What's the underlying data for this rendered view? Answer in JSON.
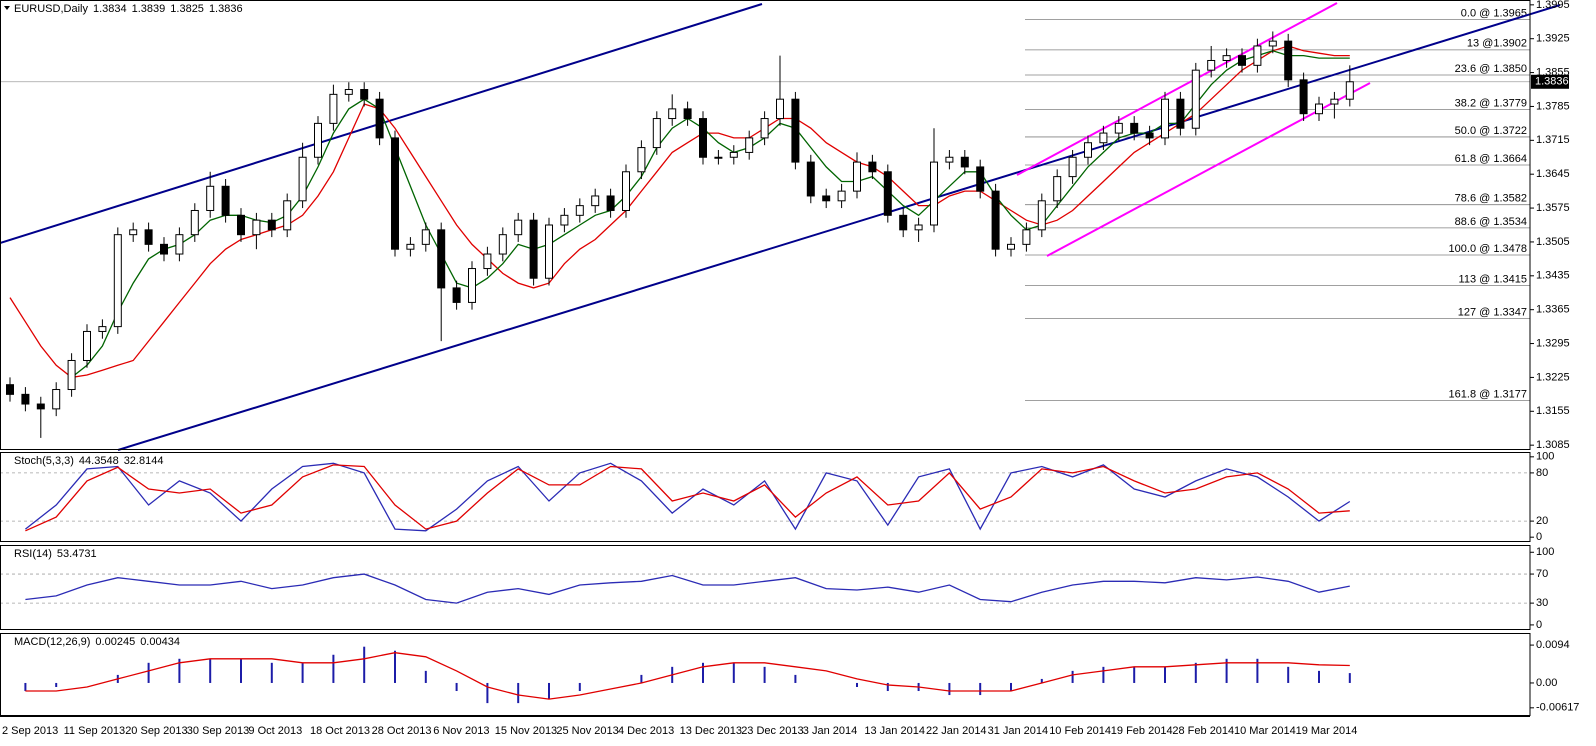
{
  "chart_data": [
    {
      "type": "candlestick",
      "title": "EURUSD,Daily",
      "header_values": [
        1.3834,
        1.3839,
        1.3825,
        1.3836
      ],
      "categories": [
        "2 Sep 2013",
        null,
        null,
        null,
        "11 Sep 2013",
        null,
        null,
        null,
        "20 Sep 2013",
        null,
        null,
        null,
        "30 Sep 2013",
        null,
        null,
        null,
        "9 Oct 2013",
        null,
        null,
        null,
        "18 Oct 2013",
        null,
        null,
        null,
        "28 Oct 2013",
        null,
        null,
        null,
        "6 Nov 2013",
        null,
        null,
        null,
        "15 Nov 2013",
        null,
        null,
        null,
        "25 Nov 2013",
        null,
        null,
        null,
        "4 Dec 2013",
        null,
        null,
        null,
        "13 Dec 2013",
        null,
        null,
        null,
        "23 Dec 2013",
        null,
        null,
        null,
        "3 Jan 2014",
        null,
        null,
        null,
        "13 Jan 2014",
        null,
        null,
        null,
        "22 Jan 2014",
        null,
        null,
        null,
        "31 Jan 2014",
        null,
        null,
        null,
        "10 Feb 2014",
        null,
        null,
        null,
        "19 Feb 2014",
        null,
        null,
        null,
        "28 Feb 2014",
        null,
        null,
        null,
        "10 Mar 2014",
        null,
        null,
        null,
        "19 Mar 2014",
        null,
        null,
        null
      ],
      "open": [
        1.321,
        1.319,
        1.317,
        1.316,
        1.32,
        1.326,
        1.332,
        1.333,
        1.352,
        1.353,
        1.35,
        1.348,
        1.352,
        1.357,
        1.362,
        1.356,
        1.352,
        1.355,
        1.353,
        1.359,
        1.368,
        1.375,
        1.381,
        1.382,
        1.38,
        1.372,
        1.349,
        1.35,
        1.353,
        1.341,
        1.338,
        1.345,
        1.348,
        1.352,
        1.355,
        1.343,
        1.354,
        1.356,
        1.358,
        1.36,
        1.357,
        1.365,
        1.37,
        1.376,
        1.378,
        1.376,
        1.368,
        1.368,
        1.369,
        1.372,
        1.376,
        1.38,
        1.367,
        1.36,
        1.359,
        1.361,
        1.367,
        1.365,
        1.356,
        1.353,
        1.354,
        1.367,
        1.368,
        1.366,
        1.361,
        1.349,
        1.35,
        1.353,
        1.359,
        1.364,
        1.368,
        1.371,
        1.373,
        1.375,
        1.373,
        1.372,
        1.38,
        1.374,
        1.386,
        1.388,
        1.389,
        1.387,
        1.391,
        1.392,
        1.384,
        1.377,
        1.379,
        1.38
      ],
      "high": [
        1.3225,
        1.3205,
        1.3185,
        1.3215,
        1.3275,
        1.3335,
        1.3345,
        1.3535,
        1.3545,
        1.3545,
        1.3515,
        1.3535,
        1.3585,
        1.365,
        1.3635,
        1.3575,
        1.3565,
        1.3565,
        1.3605,
        1.371,
        1.3765,
        1.383,
        1.3835,
        1.3835,
        1.3815,
        1.3735,
        1.3515,
        1.3545,
        1.3545,
        1.3425,
        1.3465,
        1.3495,
        1.3535,
        1.3565,
        1.3565,
        1.3555,
        1.3575,
        1.3595,
        1.3615,
        1.3615,
        1.3665,
        1.3715,
        1.3775,
        1.381,
        1.3795,
        1.3775,
        1.3695,
        1.3705,
        1.3735,
        1.3775,
        1.389,
        1.3815,
        1.3685,
        1.3615,
        1.3625,
        1.369,
        1.3685,
        1.3665,
        1.3575,
        1.3555,
        1.374,
        1.3695,
        1.3695,
        1.3675,
        1.3625,
        1.3515,
        1.3545,
        1.3605,
        1.3655,
        1.3695,
        1.3725,
        1.3745,
        1.3765,
        1.3765,
        1.3745,
        1.3815,
        1.3815,
        1.3875,
        1.391,
        1.3905,
        1.3905,
        1.3925,
        1.394,
        1.3935,
        1.3855,
        1.3805,
        1.3815,
        1.387
      ],
      "low": [
        1.3175,
        1.3155,
        1.31,
        1.3145,
        1.3185,
        1.3245,
        1.3305,
        1.3315,
        1.3505,
        1.3485,
        1.3465,
        1.3465,
        1.3505,
        1.3555,
        1.3545,
        1.3505,
        1.349,
        1.3515,
        1.3515,
        1.3575,
        1.3665,
        1.3735,
        1.3795,
        1.3785,
        1.3705,
        1.3475,
        1.3475,
        1.3485,
        1.33,
        1.3365,
        1.3365,
        1.3435,
        1.3465,
        1.3505,
        1.3415,
        1.3415,
        1.3525,
        1.3545,
        1.3565,
        1.3555,
        1.3555,
        1.3635,
        1.3685,
        1.3745,
        1.3745,
        1.3665,
        1.3665,
        1.3665,
        1.3675,
        1.3705,
        1.3745,
        1.3655,
        1.3585,
        1.3575,
        1.3575,
        1.3595,
        1.3635,
        1.3545,
        1.3515,
        1.3505,
        1.3525,
        1.3655,
        1.3645,
        1.3595,
        1.3475,
        1.3475,
        1.3485,
        1.3515,
        1.3575,
        1.3625,
        1.3665,
        1.3695,
        1.3715,
        1.3715,
        1.3705,
        1.3705,
        1.3725,
        1.3725,
        1.3845,
        1.3865,
        1.3855,
        1.3855,
        1.3895,
        1.3825,
        1.3755,
        1.3755,
        1.376,
        1.3785
      ],
      "close": [
        1.319,
        1.317,
        1.316,
        1.32,
        1.326,
        1.332,
        1.333,
        1.352,
        1.353,
        1.35,
        1.348,
        1.352,
        1.357,
        1.362,
        1.356,
        1.352,
        1.355,
        1.353,
        1.359,
        1.368,
        1.375,
        1.381,
        1.382,
        1.38,
        1.372,
        1.349,
        1.35,
        1.353,
        1.341,
        1.338,
        1.345,
        1.348,
        1.352,
        1.355,
        1.343,
        1.354,
        1.356,
        1.358,
        1.36,
        1.357,
        1.365,
        1.37,
        1.376,
        1.378,
        1.376,
        1.368,
        1.368,
        1.369,
        1.372,
        1.376,
        1.38,
        1.367,
        1.36,
        1.359,
        1.361,
        1.367,
        1.365,
        1.356,
        1.353,
        1.354,
        1.367,
        1.368,
        1.366,
        1.361,
        1.349,
        1.35,
        1.353,
        1.359,
        1.364,
        1.368,
        1.371,
        1.373,
        1.375,
        1.373,
        1.372,
        1.38,
        1.374,
        1.386,
        1.388,
        1.389,
        1.387,
        1.391,
        1.392,
        1.384,
        1.377,
        1.379,
        1.38,
        1.3836
      ],
      "lines": [
        {
          "color": "#e00000",
          "values": [
            1.339,
            1.334,
            1.329,
            1.325,
            1.3225,
            1.323,
            1.324,
            1.325,
            1.326,
            1.33,
            1.334,
            1.338,
            1.342,
            1.346,
            1.349,
            1.351,
            1.352,
            1.353,
            1.354,
            1.356,
            1.36,
            1.365,
            1.372,
            1.379,
            1.378,
            1.374,
            1.369,
            1.364,
            1.359,
            1.354,
            1.35,
            1.347,
            1.344,
            1.342,
            1.341,
            1.342,
            1.346,
            1.349,
            1.351,
            1.354,
            1.357,
            1.361,
            1.365,
            1.369,
            1.371,
            1.373,
            1.373,
            1.372,
            1.372,
            1.374,
            1.376,
            1.376,
            1.374,
            1.371,
            1.369,
            1.367,
            1.366,
            1.364,
            1.361,
            1.358,
            1.358,
            1.36,
            1.361,
            1.361,
            1.359,
            1.357,
            1.355,
            1.354,
            1.355,
            1.357,
            1.36,
            1.363,
            1.366,
            1.369,
            1.371,
            1.373,
            1.375,
            1.377,
            1.38,
            1.383,
            1.386,
            1.388,
            1.39,
            1.391,
            1.39,
            1.3895,
            1.389,
            1.389
          ]
        },
        {
          "color": "#006400",
          "values": [
            null,
            null,
            null,
            null,
            1.3225,
            1.325,
            1.329,
            1.336,
            1.342,
            1.347,
            1.349,
            1.35,
            1.352,
            1.355,
            1.356,
            1.356,
            1.355,
            1.3545,
            1.356,
            1.36,
            1.366,
            1.373,
            1.378,
            1.38,
            1.378,
            1.37,
            1.362,
            1.354,
            1.348,
            1.342,
            1.341,
            1.343,
            1.346,
            1.35,
            1.349,
            1.35,
            1.352,
            1.354,
            1.356,
            1.357,
            1.36,
            1.364,
            1.37,
            1.374,
            1.376,
            1.374,
            1.371,
            1.369,
            1.37,
            1.372,
            1.375,
            1.374,
            1.37,
            1.366,
            1.363,
            1.363,
            1.364,
            1.361,
            1.358,
            1.356,
            1.359,
            1.362,
            1.365,
            1.365,
            1.36,
            1.356,
            1.353,
            1.354,
            1.358,
            1.362,
            1.366,
            1.369,
            1.372,
            1.373,
            1.373,
            1.375,
            1.375,
            1.379,
            1.383,
            1.386,
            1.388,
            1.389,
            1.39,
            1.389,
            1.389,
            1.3885,
            1.3885,
            1.3885
          ]
        }
      ],
      "last_price": 1.3836,
      "fib_levels": [
        {
          "value": 1.3965,
          "label": "0.0 @ 1.3965"
        },
        {
          "value": 1.3902,
          "label": "13 @1.3902"
        },
        {
          "value": 1.385,
          "label": "23.6 @ 1.3850"
        },
        {
          "value": 1.3779,
          "label": "38.2 @ 1.3779"
        },
        {
          "value": 1.3722,
          "label": "50.0 @ 1.3722"
        },
        {
          "value": 1.3664,
          "label": "61.8 @ 1.3664"
        },
        {
          "value": 1.3582,
          "label": "78.6 @ 1.3582"
        },
        {
          "value": 1.3534,
          "label": "88.6 @ 1.3534"
        },
        {
          "value": 1.3478,
          "label": "100.0 @ 1.3478"
        },
        {
          "value": 1.3415,
          "label": "113 @ 1.3415"
        },
        {
          "value": 1.3347,
          "label": "127 @ 1.3347"
        },
        {
          "value": 1.3177,
          "label": "161.8 @ 1.3177"
        }
      ],
      "ylim": [
        1.3075,
        1.4005
      ],
      "yticks": [
        1.3995,
        1.3925,
        1.3855,
        1.3785,
        1.3715,
        1.3645,
        1.3575,
        1.3505,
        1.3435,
        1.3365,
        1.3295,
        1.3225,
        1.3155,
        1.3085
      ]
    },
    {
      "type": "oscillator",
      "title": "Stoch(5,3,3)",
      "header_values": [
        44.3548,
        32.8144
      ],
      "ylim": [
        -6,
        106
      ],
      "yticks": [
        100,
        80,
        20,
        0
      ],
      "levels": [
        80,
        20
      ],
      "series": [
        {
          "color": "#2b2bb5",
          "values": [
            10,
            40,
            85,
            88,
            40,
            70,
            55,
            20,
            60,
            88,
            92,
            80,
            10,
            8,
            35,
            70,
            88,
            45,
            80,
            92,
            70,
            30,
            60,
            40,
            70,
            10,
            80,
            70,
            15,
            75,
            85,
            10,
            80,
            88,
            75,
            90,
            60,
            50,
            70,
            85,
            75,
            50,
            20,
            44.3548
          ]
        },
        {
          "color": "#e00000",
          "values": [
            8,
            25,
            70,
            87,
            60,
            55,
            60,
            30,
            40,
            75,
            90,
            88,
            40,
            10,
            20,
            55,
            85,
            65,
            65,
            88,
            85,
            45,
            55,
            45,
            65,
            25,
            55,
            75,
            40,
            45,
            80,
            35,
            50,
            85,
            80,
            88,
            70,
            55,
            60,
            75,
            80,
            60,
            30,
            32.8144
          ]
        }
      ]
    },
    {
      "type": "oscillator",
      "title": "RSI(14)",
      "header_values": [
        53.4731
      ],
      "ylim": [
        -7,
        110
      ],
      "yticks": [
        100,
        70,
        30,
        0
      ],
      "levels": [
        70,
        30
      ],
      "series": [
        {
          "color": "#2b2bb5",
          "values": [
            35,
            40,
            55,
            65,
            60,
            55,
            55,
            60,
            50,
            55,
            65,
            70,
            55,
            35,
            30,
            45,
            50,
            42,
            55,
            58,
            60,
            68,
            55,
            55,
            60,
            65,
            50,
            48,
            52,
            45,
            55,
            35,
            32,
            45,
            55,
            60,
            60,
            58,
            65,
            62,
            66,
            60,
            45,
            53.4731
          ]
        }
      ]
    },
    {
      "type": "macd",
      "title": "MACD(12,26,9)",
      "header_values": [
        0.00245,
        0.00434
      ],
      "ylim": [
        -0.0082,
        0.0124
      ],
      "yticks": [
        0.0094,
        {
          "value": 0,
          "label": "0.00"
        },
        -0.00617
      ],
      "histogram": {
        "color": "#1c1ca8",
        "values": [
          -0.002,
          -0.001,
          0,
          0.002,
          0.005,
          0.006,
          0.006,
          0.006,
          0.005,
          0.005,
          0.007,
          0.009,
          0.008,
          0.003,
          -0.002,
          -0.005,
          -0.005,
          -0.004,
          -0.002,
          0,
          0.002,
          0.004,
          0.005,
          0.005,
          0.004,
          0.002,
          0,
          -0.001,
          -0.002,
          -0.002,
          -0.003,
          -0.003,
          -0.002,
          0.001,
          0.003,
          0.004,
          0.004,
          0.004,
          0.005,
          0.006,
          0.006,
          0.004,
          0.003,
          0.00245
        ]
      },
      "series": [
        {
          "color": "#e00000",
          "values": [
            -0.002,
            -0.002,
            -0.001,
            0.001,
            0.003,
            0.005,
            0.006,
            0.006,
            0.006,
            0.005,
            0.005,
            0.006,
            0.0075,
            0.0065,
            0.003,
            -0.001,
            -0.003,
            -0.004,
            -0.003,
            -0.0015,
            0,
            0.002,
            0.004,
            0.005,
            0.005,
            0.004,
            0.003,
            0.001,
            -0.0005,
            -0.001,
            -0.002,
            -0.002,
            -0.002,
            0,
            0.002,
            0.003,
            0.004,
            0.004,
            0.0045,
            0.005,
            0.005,
            0.005,
            0.0045,
            0.00434
          ]
        }
      ]
    }
  ]
}
